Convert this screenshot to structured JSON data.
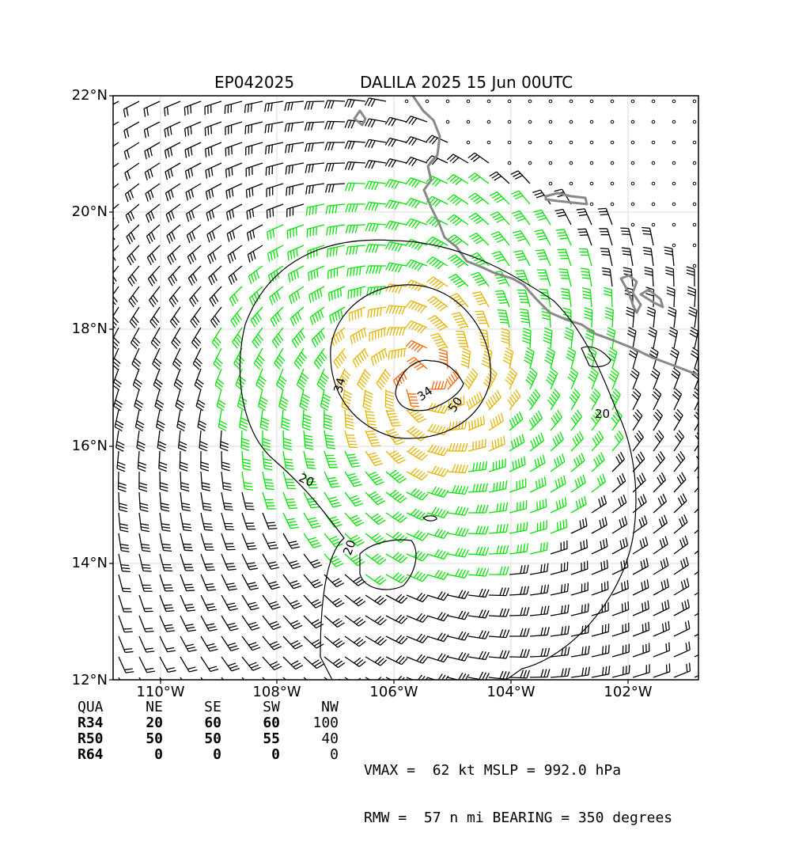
{
  "header": {
    "storm_id": "EP042025",
    "storm_title": "DALILA 2025 15 Jun 00UTC"
  },
  "map": {
    "lat_labels": [
      "22°N",
      "20°N",
      "18°N",
      "16°N",
      "14°N",
      "12°N"
    ],
    "lon_labels": [
      "110°W",
      "108°W",
      "106°W",
      "104°W",
      "102°W"
    ],
    "contour_labels": [
      "34",
      "34",
      "50",
      "20",
      "20",
      "20"
    ],
    "colors": {
      "wind_ge34": "#00e600",
      "wind_ge50": "#e6b400",
      "wind_ge64": "#ff6600",
      "wind_lt34": "#000000",
      "coastline": "#888888",
      "grid": "#dddddd"
    }
  },
  "radii_table": {
    "header": [
      "QUA",
      "NE",
      "SE",
      "SW",
      "NW"
    ],
    "rows": [
      {
        "label": "R34",
        "values": [
          "20",
          "60",
          "60",
          "100"
        ]
      },
      {
        "label": "R50",
        "values": [
          "50",
          "50",
          "55",
          "40"
        ]
      },
      {
        "label": "R64",
        "values": [
          "0",
          "0",
          "0",
          "0"
        ]
      }
    ]
  },
  "info": {
    "line1": "VMAX =  62 kt MSLP = 992.0 hPa",
    "line2": "RMW =  57 n mi BEARING = 350 degrees"
  }
}
